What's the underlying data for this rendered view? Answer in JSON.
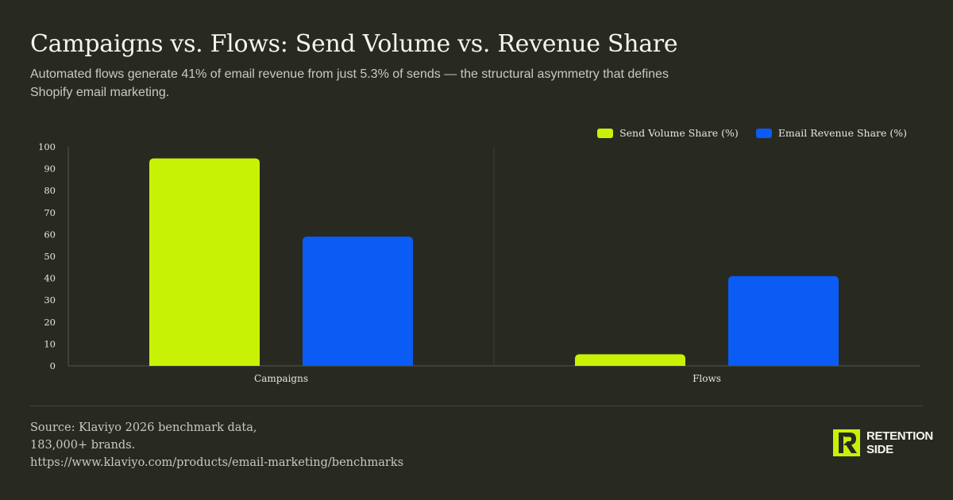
{
  "header": {
    "title": "Campaigns vs. Flows: Send Volume vs. Revenue Share",
    "subtitle": "Automated flows generate 41% of email revenue from just 5.3% of sends — the structural asymmetry that defines Shopify email marketing."
  },
  "colors": {
    "background": "#282a22",
    "send_volume": "#c8f205",
    "revenue": "#0a5cf5"
  },
  "chart_data": {
    "type": "bar",
    "title": "Campaigns vs. Flows: Send Volume vs. Revenue Share",
    "categories": [
      "Campaigns",
      "Flows"
    ],
    "series": [
      {
        "name": "Send Volume Share (%)",
        "values": [
          94.7,
          5.3
        ]
      },
      {
        "name": "Email Revenue Share (%)",
        "values": [
          59,
          41
        ]
      }
    ],
    "ylim": [
      0,
      100
    ],
    "yticks": [
      "0",
      "10",
      "20",
      "30",
      "40",
      "50",
      "60",
      "70",
      "80",
      "90",
      "100"
    ],
    "xlabel": "",
    "ylabel": "",
    "legend": "top-right",
    "grid": false
  },
  "footer": {
    "source_text": "Source: Klaviyo 2026 benchmark data, 183,000+ brands.",
    "source_url": "https://www.klaviyo.com/products/email-marketing/benchmarks"
  },
  "brand": {
    "line1": "RETENTION",
    "line2": "SIDE",
    "icon": "retention-side-logo-icon"
  }
}
